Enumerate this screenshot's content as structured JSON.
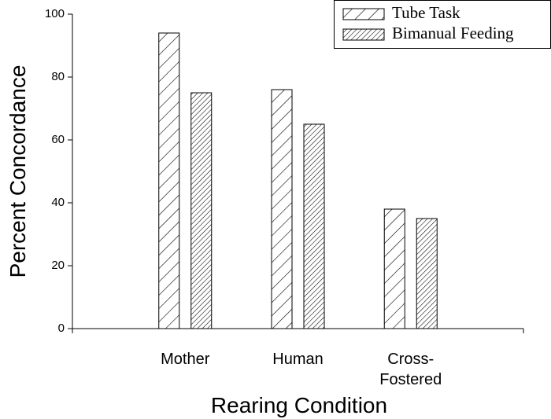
{
  "chart_data": {
    "type": "bar",
    "xlabel": "Rearing Condition",
    "ylabel": "Percent Concordance",
    "categories": [
      "Mother",
      "Human",
      "Cross-Fostered"
    ],
    "series": [
      {
        "name": "Tube Task",
        "color": "#000000",
        "hatch": "sparse",
        "values": [
          94,
          76,
          38
        ]
      },
      {
        "name": "Bimanual Feeding",
        "color": "#000000",
        "hatch": "dense",
        "values": [
          75,
          65,
          35
        ]
      }
    ],
    "ylim": [
      0,
      100
    ],
    "yticks": [
      0,
      20,
      40,
      60,
      80,
      100
    ],
    "legend": "upper right"
  }
}
